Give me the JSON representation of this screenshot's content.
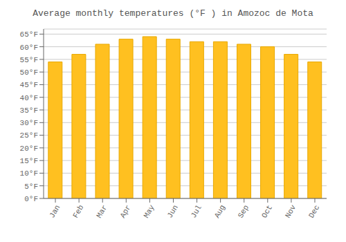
{
  "chart_data": {
    "type": "bar",
    "title": "Average monthly temperatures (°F ) in Amozoc de Mota",
    "categories": [
      "Jan",
      "Feb",
      "Mar",
      "Apr",
      "May",
      "Jun",
      "Jul",
      "Aug",
      "Sep",
      "Oct",
      "Nov",
      "Dec"
    ],
    "values": [
      54,
      57,
      61,
      63,
      64,
      63,
      62,
      62,
      61,
      60,
      57,
      54
    ],
    "color": "#FFC020",
    "ylim": [
      0,
      67
    ],
    "yticks": [
      {
        "value": 0,
        "label": "0°F"
      },
      {
        "value": 5,
        "label": "5°F"
      },
      {
        "value": 10,
        "label": "10°F"
      },
      {
        "value": 15,
        "label": "15°F"
      },
      {
        "value": 20,
        "label": "20°F"
      },
      {
        "value": 25,
        "label": "25°F"
      },
      {
        "value": 30,
        "label": "30°F"
      },
      {
        "value": 35,
        "label": "35°F"
      },
      {
        "value": 40,
        "label": "40°F"
      },
      {
        "value": 45,
        "label": "45°F"
      },
      {
        "value": 50,
        "label": "50°F"
      },
      {
        "value": 55,
        "label": "55°F"
      },
      {
        "value": 60,
        "label": "60°F"
      },
      {
        "value": 65,
        "label": "65°F"
      }
    ],
    "grid": true
  }
}
